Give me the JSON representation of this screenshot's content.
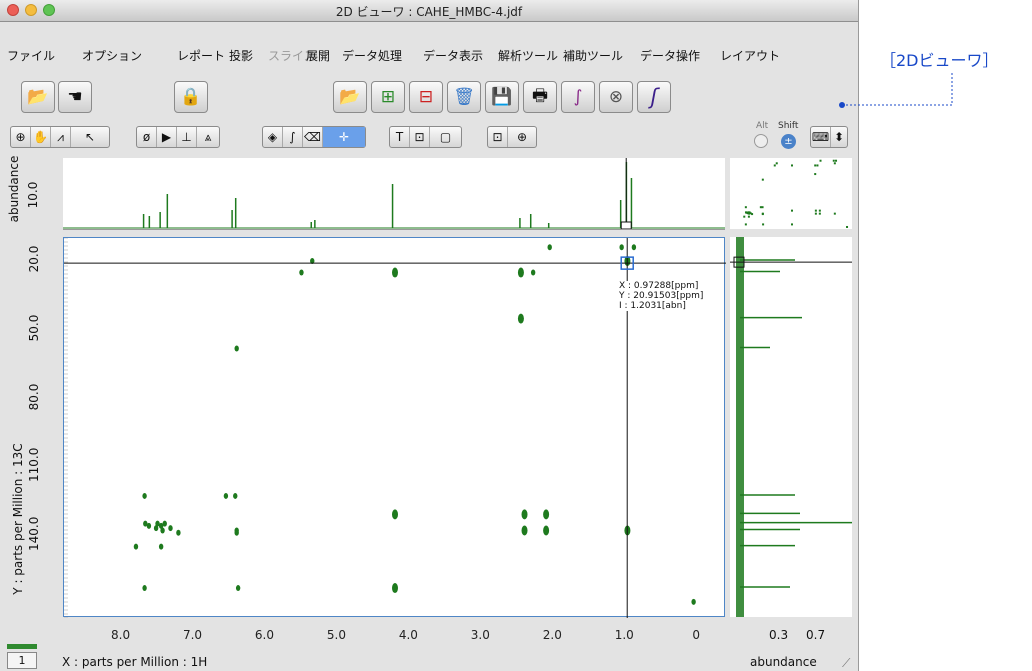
{
  "window": {
    "title": "2D ビューワ : CAHE_HMBC-4.jdf"
  },
  "annotation_label": "［2Dビューワ］",
  "menu": [
    "ファイル",
    "オプション",
    "レポート",
    "投影",
    "スライス",
    "展開",
    "データ処理",
    "データ表示",
    "解析ツール",
    "補助ツール",
    "データ操作",
    "レイアウト"
  ],
  "menu_disabled": [
    "スライス"
  ],
  "toolbar1_icons": [
    "open-folder-icon",
    "hand-icon",
    "lock-icon",
    "open-folder-icon",
    "add-spectrum-icon",
    "remove-spectrum-icon",
    "trash-icon",
    "save-icon",
    "print-icon",
    "transform-icon",
    "cancel-icon",
    "integral-icon"
  ],
  "toolbar2_icons": [
    "zoom-icon",
    "hand-icon",
    "peak-icon",
    "pointer-icon",
    "phase-icon",
    "arrow-icon",
    "baseline-icon",
    "peak-pick-icon",
    "diamond-icon",
    "integral-icon",
    "eraser-icon",
    "crosshair-icon",
    "text-icon",
    "text-box-icon",
    "frame-icon",
    "point-icon",
    "target-icon"
  ],
  "modifiers": {
    "alt": "Alt",
    "shift": "Shift"
  },
  "cursor_readout": {
    "x": "X : 0.97288[ppm]",
    "y": "Y : 20.91503[ppm]",
    "i": "I : 1.2031[abn]"
  },
  "top_projection": {
    "ylabel": "abundance",
    "tick": "10.0"
  },
  "right_projection": {
    "xlabel": "abundance",
    "ticks": [
      "0.3",
      "0.7"
    ]
  },
  "page_indicator": "1",
  "chart_data": {
    "type": "scatter",
    "xlabel": "X : parts per Million : 1H",
    "ylabel": "Y : parts per Million : 13C",
    "x_ticks": [
      "8.0",
      "7.0",
      "6.0",
      "5.0",
      "4.0",
      "3.0",
      "2.0",
      "1.0",
      "0"
    ],
    "y_ticks": [
      "20.0",
      "50.0",
      "80.0",
      "110.0",
      "140.0"
    ],
    "xlim": [
      8.8,
      -0.4
    ],
    "ylim": [
      10,
      175
    ],
    "cursor": {
      "x": 0.97288,
      "y": 20.91503
    },
    "color": "#1e7a1e",
    "peaks": [
      [
        7.68,
        122
      ],
      [
        7.67,
        134
      ],
      [
        7.62,
        135
      ],
      [
        7.52,
        136
      ],
      [
        7.5,
        134
      ],
      [
        7.45,
        135
      ],
      [
        7.43,
        137
      ],
      [
        7.4,
        134
      ],
      [
        7.32,
        136
      ],
      [
        7.21,
        138
      ],
      [
        7.8,
        144
      ],
      [
        7.45,
        144
      ],
      [
        7.68,
        162
      ],
      [
        6.55,
        122
      ],
      [
        6.42,
        122
      ],
      [
        6.4,
        138
      ],
      [
        6.4,
        137
      ],
      [
        6.38,
        162
      ],
      [
        6.4,
        58
      ],
      [
        5.35,
        20
      ],
      [
        5.5,
        25
      ],
      [
        4.2,
        25
      ],
      [
        4.2,
        130
      ],
      [
        4.2,
        162
      ],
      [
        2.45,
        45
      ],
      [
        2.45,
        25
      ],
      [
        2.28,
        25
      ],
      [
        2.4,
        130
      ],
      [
        2.4,
        137
      ],
      [
        2.1,
        130
      ],
      [
        2.1,
        137
      ],
      [
        2.05,
        14
      ],
      [
        1.05,
        14
      ],
      [
        0.88,
        14
      ],
      [
        0.97,
        20
      ],
      [
        0.97,
        137
      ],
      [
        0.05,
        168
      ]
    ]
  }
}
